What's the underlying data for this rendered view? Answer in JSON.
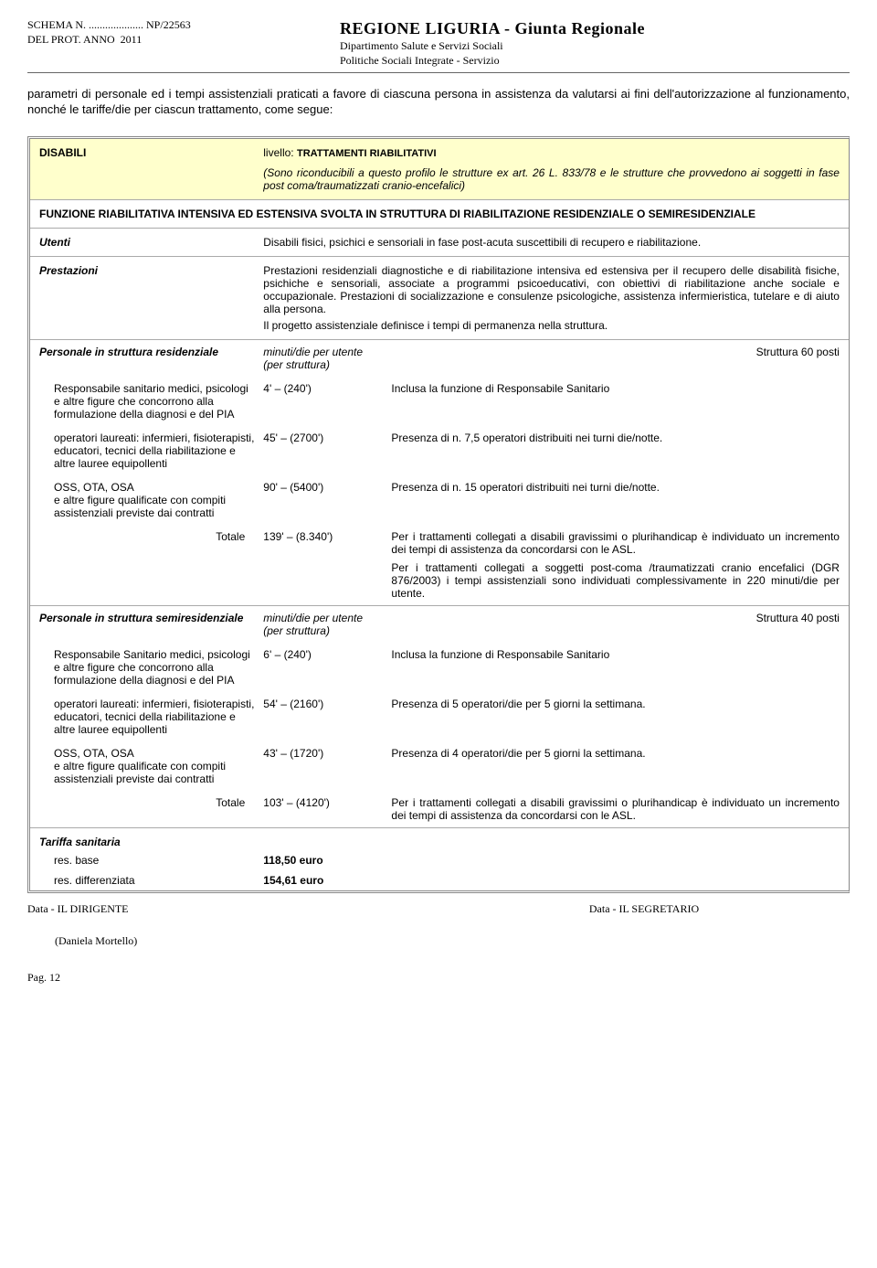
{
  "header": {
    "schema_label": "SCHEMA N. ....................",
    "schema_no": "NP/22563",
    "prot_label": "DEL PROT. ANNO",
    "prot_year": "2011",
    "region_title": "REGIONE LIGURIA - Giunta Regionale",
    "dept1": "Dipartimento Salute e Servizi Sociali",
    "dept2": "Politiche Sociali Integrate - Servizio"
  },
  "intro": "parametri di personale ed i tempi assistenziali praticati a favore di ciascuna persona in assistenza da valutarsi ai fini dell'autorizzazione al funzionamento, nonché le tariffe/die per ciascun trattamento, come segue:",
  "section_header": {
    "category": "DISABILI",
    "level_label": "livello:",
    "level_value": "TRATTAMENTI RIABILITATIVI",
    "note": "(Sono riconducibili a questo profilo le strutture ex art. 26 L. 833/78 e le strutture che provvedono ai soggetti in fase post coma/traumatizzati cranio-encefalici)"
  },
  "function_title": "FUNZIONE RIABILITATIVA INTENSIVA ED ESTENSIVA SVOLTA IN STRUTTURA DI RIABILITAZIONE RESIDENZIALE O SEMIRESIDENZIALE",
  "utenti": {
    "label": "Utenti",
    "text": "Disabili fisici, psichici e sensoriali in fase post-acuta suscettibili di recupero e riabilitazione."
  },
  "prestazioni": {
    "label": "Prestazioni",
    "text1": "Prestazioni residenziali diagnostiche e di riabilitazione intensiva ed estensiva per il recupero delle disabilità fisiche, psichiche e sensoriali, associate a programmi psicoeducativi, con obiettivi di riabilitazione anche sociale e occupazionale. Prestazioni di socializzazione e consulenze psicologiche, assistenza infermieristica, tutelare e di aiuto alla persona.",
    "text2": "Il progetto assistenziale definisce i tempi di permanenza nella struttura."
  },
  "res": {
    "title": "Personale in struttura residenziale",
    "col2": "minuti/die per utente (per struttura)",
    "col3": "Struttura 60 posti",
    "rows": [
      {
        "role": "Responsabile sanitario medici, psicologi e altre figure che concorrono alla formulazione della diagnosi e del PIA",
        "value": "4' – (240')",
        "note": "Inclusa la funzione di Responsabile Sanitario"
      },
      {
        "role": "operatori laureati: infermieri, fisioterapisti, educatori, tecnici della riabilitazione e altre lauree equipollenti",
        "value": "45' – (2700')",
        "note": "Presenza di n. 7,5 operatori distribuiti nei turni die/notte."
      },
      {
        "role": "OSS, OTA, OSA\ne altre figure qualificate con compiti assistenziali previste dai contratti",
        "value": "90' – (5400')",
        "note": "Presenza di n. 15 operatori distribuiti nei turni die/notte."
      }
    ],
    "total_label": "Totale",
    "total_value": "139' – (8.340')",
    "total_note1": "Per i trattamenti collegati a disabili gravissimi o plurihandicap è individuato un incremento dei tempi di assistenza da concordarsi con le ASL.",
    "total_note2": "Per i trattamenti collegati a soggetti post-coma /traumatizzati cranio encefalici (DGR 876/2003) i tempi assistenziali sono individuati complessivamente in 220 minuti/die per utente."
  },
  "semires": {
    "title": "Personale in struttura semiresidenziale",
    "col2": "minuti/die per utente (per struttura)",
    "col3": "Struttura 40 posti",
    "rows": [
      {
        "role": "Responsabile Sanitario medici, psicologi e altre figure che concorrono alla formulazione della diagnosi e del PIA",
        "value": "6' – (240')",
        "note": "Inclusa la funzione di Responsabile Sanitario"
      },
      {
        "role": "operatori laureati: infermieri, fisioterapisti, educatori, tecnici della riabilitazione e altre lauree equipollenti",
        "value": "54' – (2160')",
        "note": "Presenza di 5 operatori/die per 5 giorni la settimana."
      },
      {
        "role": "OSS, OTA, OSA\ne altre figure qualificate con compiti assistenziali previste dai contratti",
        "value": "43' – (1720')",
        "note": "Presenza di 4 operatori/die per 5 giorni la settimana."
      }
    ],
    "total_label": "Totale",
    "total_value": "103' – (4120')",
    "total_note": "Per i trattamenti collegati a disabili gravissimi o plurihandicap è individuato un incremento dei tempi di assistenza da concordarsi con le ASL."
  },
  "tariff": {
    "title": "Tariffa sanitaria",
    "rows": [
      {
        "label": "res. base",
        "value": "118,50 euro"
      },
      {
        "label": "res. differenziata",
        "value": "154,61 euro"
      }
    ]
  },
  "footer": {
    "left": "Data - IL DIRIGENTE",
    "right": "Data - IL SEGRETARIO",
    "sig": "(Daniela Mortello)",
    "page": "Pag. 12"
  }
}
